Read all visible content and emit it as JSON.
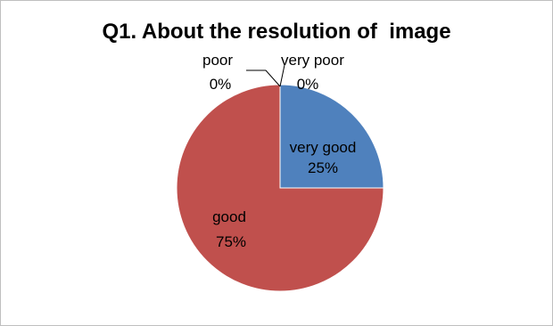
{
  "chart_data": {
    "type": "pie",
    "title": "Q1. About the resolution of  image",
    "slices": [
      {
        "label": "very good",
        "value": 25,
        "value_text": "25%",
        "color": "#4f81bd"
      },
      {
        "label": "good",
        "value": 75,
        "value_text": "75%",
        "color": "#c0504d"
      },
      {
        "label": "poor",
        "value": 0,
        "value_text": "0%",
        "color": "#9bbb59"
      },
      {
        "label": "very poor",
        "value": 0,
        "value_text": "0%",
        "color": "#8064a2"
      }
    ]
  }
}
